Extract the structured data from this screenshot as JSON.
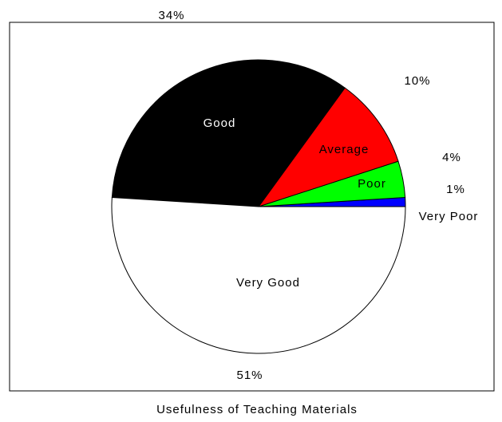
{
  "chart_data": {
    "type": "pie",
    "title": "Usefulness of Teaching Materials",
    "categories": [
      "Very Poor",
      "Poor",
      "Average",
      "Good",
      "Very Good"
    ],
    "values": [
      1,
      4,
      10,
      34,
      51
    ],
    "value_labels": [
      "1%",
      "4%",
      "10%",
      "34%",
      "51%"
    ],
    "colors": [
      "#0000ff",
      "#00ff00",
      "#ff0000",
      "#000000",
      "#ffffff"
    ]
  }
}
